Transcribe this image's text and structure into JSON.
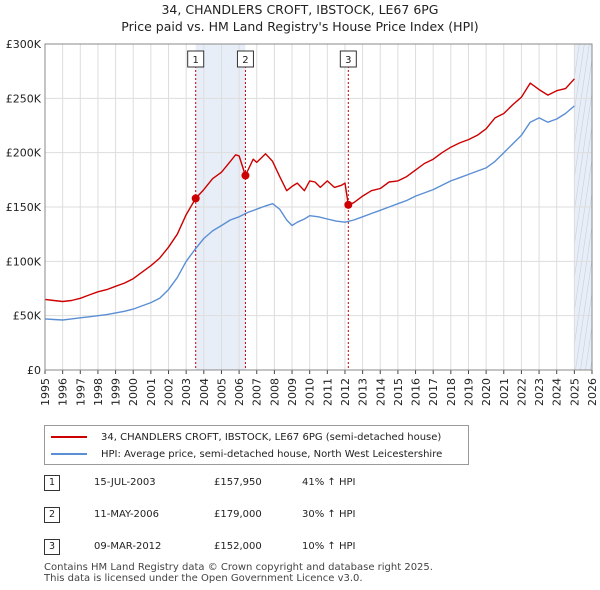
{
  "title_line1": "34, CHANDLERS CROFT, IBSTOCK, LE67 6PG",
  "title_line2": "Price paid vs. HM Land Registry's House Price Index (HPI)",
  "legend": [
    {
      "label": "34, CHANDLERS CROFT, IBSTOCK, LE67 6PG (semi-detached house)",
      "color": "#cc0000"
    },
    {
      "label": "HPI: Average price, semi-detached house, North West Leicestershire",
      "color": "#5b8fd4"
    }
  ],
  "sales": [
    {
      "num": "1",
      "date": "15-JUL-2003",
      "price": "£157,950",
      "hpi": "41% ↑ HPI"
    },
    {
      "num": "2",
      "date": "11-MAY-2006",
      "price": "£179,000",
      "hpi": "30% ↑ HPI"
    },
    {
      "num": "3",
      "date": "09-MAR-2012",
      "price": "£152,000",
      "hpi": "10% ↑ HPI"
    }
  ],
  "footer_line1": "Contains HM Land Registry data © Crown copyright and database right 2025.",
  "footer_line2": "This data is licensed under the Open Government Licence v3.0.",
  "chart_data": {
    "type": "line",
    "title": "Price paid vs. HM Land Registry's House Price Index (HPI)",
    "xlim": [
      1995,
      2026
    ],
    "ylim": [
      0,
      300000
    ],
    "x_ticks": [
      1995,
      1996,
      1997,
      1998,
      1999,
      2000,
      2001,
      2002,
      2003,
      2004,
      2005,
      2006,
      2007,
      2008,
      2009,
      2010,
      2011,
      2012,
      2013,
      2014,
      2015,
      2016,
      2017,
      2018,
      2019,
      2020,
      2021,
      2022,
      2023,
      2024,
      2025,
      2026
    ],
    "y_ticks": [
      {
        "value": 0,
        "label": "£0"
      },
      {
        "value": 50000,
        "label": "£50K"
      },
      {
        "value": 100000,
        "label": "£100K"
      },
      {
        "value": 150000,
        "label": "£150K"
      },
      {
        "value": 200000,
        "label": "£200K"
      },
      {
        "value": 250000,
        "label": "£250K"
      },
      {
        "value": 300000,
        "label": "£300K"
      }
    ],
    "shaded_spans": [
      {
        "from": 2003.54,
        "to": 2006.36
      },
      {
        "from": 2025.0,
        "to": 2026.0
      }
    ],
    "sale_markers": [
      {
        "num": "1",
        "x": 2003.54,
        "y": 157950
      },
      {
        "num": "2",
        "x": 2006.36,
        "y": 179000
      },
      {
        "num": "3",
        "x": 2012.19,
        "y": 152000
      }
    ],
    "series": [
      {
        "name": "34, CHANDLERS CROFT, IBSTOCK, LE67 6PG (semi-detached house)",
        "color": "#cc0000",
        "x": [
          1995,
          1995.5,
          1996,
          1996.5,
          1997,
          1997.5,
          1998,
          1998.5,
          1999,
          1999.5,
          2000,
          2000.5,
          2001,
          2001.5,
          2002,
          2002.5,
          2003,
          2003.54,
          2004,
          2004.5,
          2005,
          2005.5,
          2005.8,
          2006,
          2006.36,
          2006.8,
          2007,
          2007.5,
          2007.9,
          2008.3,
          2008.7,
          2009,
          2009.3,
          2009.7,
          2010,
          2010.3,
          2010.6,
          2011,
          2011.4,
          2011.8,
          2012.0,
          2012.19,
          2012.5,
          2013,
          2013.5,
          2014,
          2014.5,
          2015,
          2015.5,
          2016,
          2016.5,
          2017,
          2017.5,
          2018,
          2018.5,
          2019,
          2019.5,
          2020,
          2020.5,
          2021,
          2021.5,
          2022,
          2022.5,
          2023,
          2023.5,
          2024,
          2024.5,
          2025
        ],
        "values": [
          65000,
          64000,
          63000,
          64000,
          66000,
          69000,
          72000,
          74000,
          77000,
          80000,
          84000,
          90000,
          96000,
          103000,
          113000,
          125000,
          143000,
          157950,
          166000,
          176000,
          182000,
          192000,
          198000,
          197000,
          179000,
          194000,
          191000,
          199000,
          192000,
          178000,
          165000,
          169000,
          172000,
          165000,
          174000,
          173000,
          168000,
          174000,
          168000,
          170000,
          172000,
          152000,
          154000,
          160000,
          165000,
          167000,
          173000,
          174000,
          178000,
          184000,
          190000,
          194000,
          200000,
          205000,
          209000,
          212000,
          216000,
          222000,
          232000,
          236000,
          244000,
          251000,
          264000,
          258000,
          253000,
          257000,
          259000,
          268000
        ]
      },
      {
        "name": "HPI: Average price, semi-detached house, North West Leicestershire",
        "color": "#5b8fd4",
        "x": [
          1995,
          1995.5,
          1996,
          1996.5,
          1997,
          1997.5,
          1998,
          1998.5,
          1999,
          1999.5,
          2000,
          2000.5,
          2001,
          2001.5,
          2002,
          2002.5,
          2003,
          2003.5,
          2004,
          2004.5,
          2005,
          2005.5,
          2006,
          2006.5,
          2007,
          2007.5,
          2007.9,
          2008.3,
          2008.7,
          2009,
          2009.3,
          2009.7,
          2010,
          2010.5,
          2011,
          2011.5,
          2012,
          2012.5,
          2013,
          2013.5,
          2014,
          2014.5,
          2015,
          2015.5,
          2016,
          2016.5,
          2017,
          2017.5,
          2018,
          2018.5,
          2019,
          2019.5,
          2020,
          2020.5,
          2021,
          2021.5,
          2022,
          2022.5,
          2023,
          2023.5,
          2024,
          2024.5,
          2025
        ],
        "values": [
          47000,
          46500,
          46000,
          47000,
          48000,
          49000,
          50000,
          51000,
          52500,
          54000,
          56000,
          59000,
          62000,
          66000,
          74000,
          85000,
          100000,
          111000,
          121000,
          128000,
          133000,
          138000,
          141000,
          145000,
          148000,
          151000,
          153000,
          148000,
          138000,
          133000,
          136000,
          139000,
          142000,
          141000,
          139000,
          137000,
          136000,
          138000,
          141000,
          144000,
          147000,
          150000,
          153000,
          156000,
          160000,
          163000,
          166000,
          170000,
          174000,
          177000,
          180000,
          183000,
          186000,
          192000,
          200000,
          208000,
          216000,
          228000,
          232000,
          228000,
          231000,
          236000,
          243000
        ]
      }
    ]
  }
}
